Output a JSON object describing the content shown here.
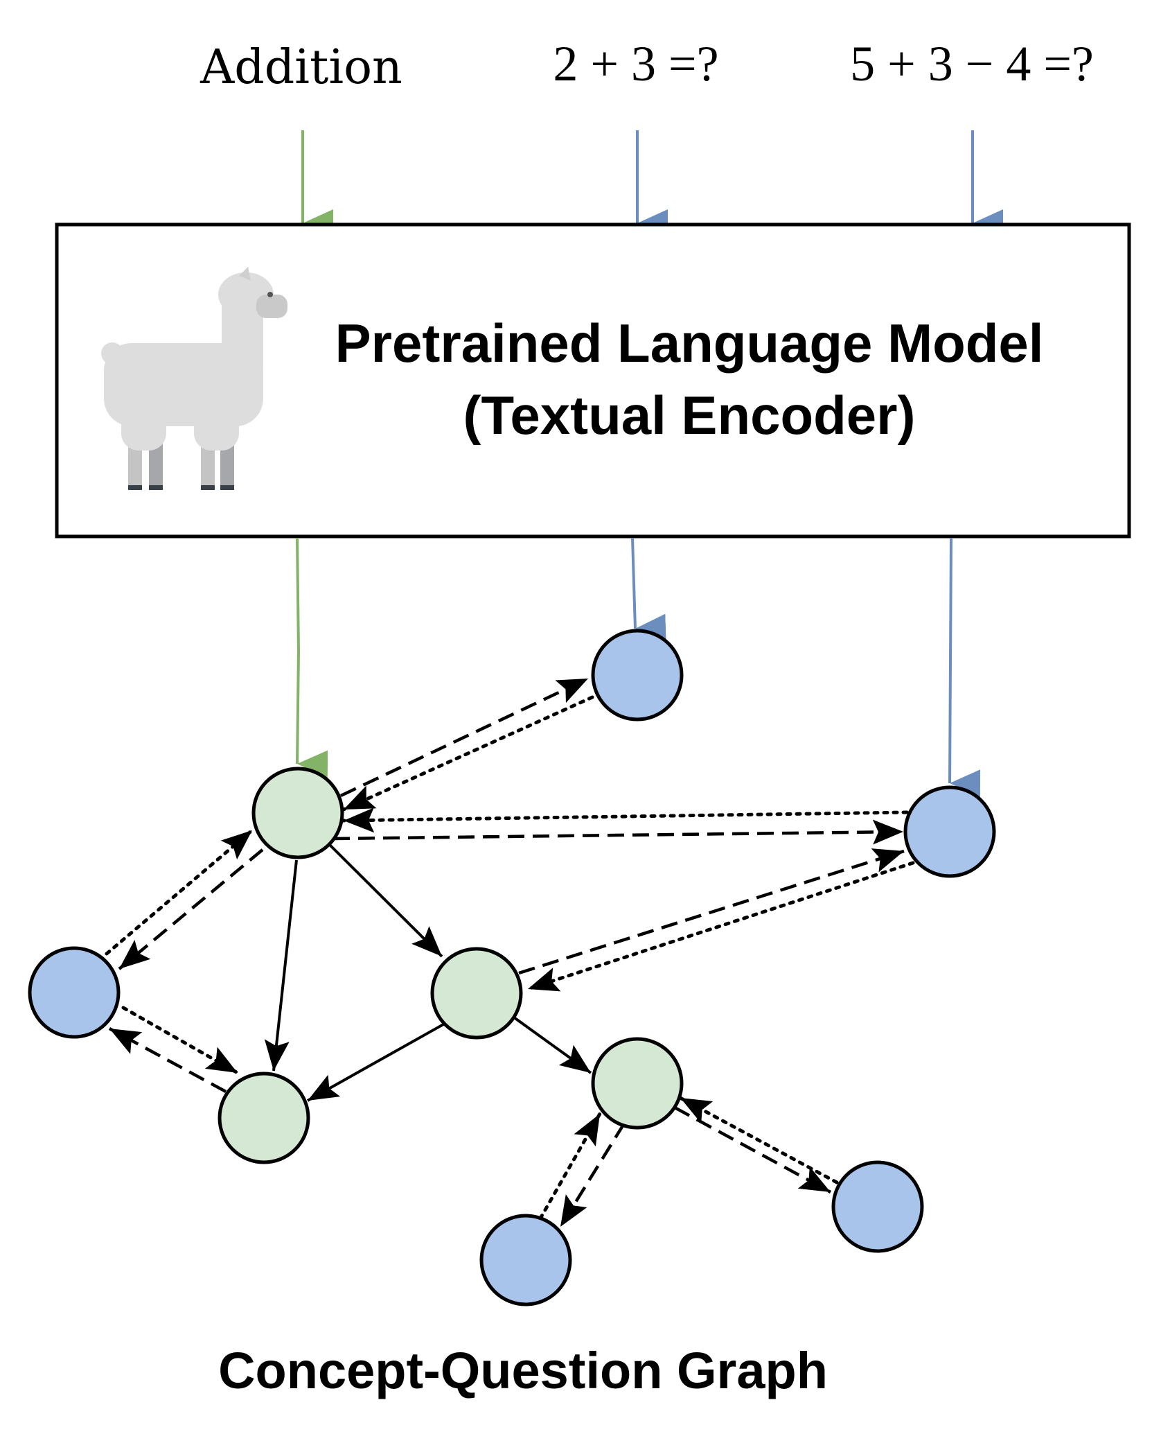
{
  "inputs": {
    "concept": "Addition",
    "question_1": "2 + 3 =?",
    "question_2": "5 + 3 − 4 =?"
  },
  "encoder": {
    "title_line_1": "Pretrained Language Model",
    "title_line_2": "(Textual Encoder)",
    "icon": "llama-icon"
  },
  "graph": {
    "caption": "Concept-Question Graph"
  },
  "colors": {
    "concept_arrow": "#82b366",
    "question_arrow": "#6c8ebf",
    "concept_node_fill": "#d5e8d4",
    "question_node_fill": "#a9c4eb",
    "stroke": "#000000"
  }
}
